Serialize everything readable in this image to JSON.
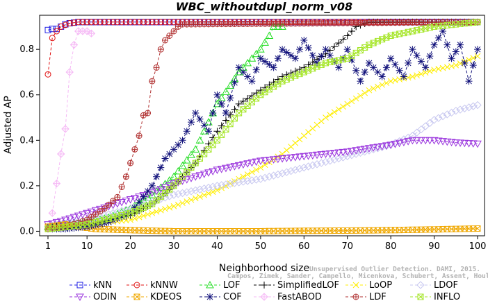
{
  "chart_data": {
    "type": "line",
    "title": "WBC_withoutdupl_norm_v08",
    "xlabel": "Neighborhood size",
    "ylabel": "Adjusted AP",
    "xlim": [
      1,
      100
    ],
    "ylim": [
      -0.02,
      0.95
    ],
    "xticks": [
      1,
      10,
      20,
      30,
      40,
      50,
      60,
      70,
      80,
      90,
      100
    ],
    "yticks": [
      0.0,
      0.2,
      0.4,
      0.6,
      0.8
    ],
    "ytick_labels": [
      "0.0",
      "0.2",
      "0.4",
      "0.6",
      "0.8"
    ],
    "legend_position": "bottom",
    "grid": false,
    "series": [
      {
        "name": "kNN",
        "color": "#1f1fe6",
        "marker": "square",
        "dashed": true,
        "points": [
          [
            1,
            0.885
          ],
          [
            2,
            0.89
          ],
          [
            3,
            0.89
          ],
          [
            4,
            0.9
          ],
          [
            5,
            0.91
          ],
          [
            6,
            0.915
          ],
          [
            8,
            0.92
          ],
          [
            10,
            0.92
          ],
          [
            20,
            0.92
          ],
          [
            40,
            0.92
          ],
          [
            60,
            0.92
          ],
          [
            80,
            0.92
          ],
          [
            100,
            0.92
          ]
        ]
      },
      {
        "name": "kNNW",
        "color": "#e01010",
        "marker": "circle",
        "dashed": true,
        "points": [
          [
            1,
            0.69
          ],
          [
            2,
            0.85
          ],
          [
            3,
            0.88
          ],
          [
            4,
            0.9
          ],
          [
            6,
            0.915
          ],
          [
            8,
            0.92
          ],
          [
            12,
            0.92
          ],
          [
            100,
            0.92
          ]
        ]
      },
      {
        "name": "LOF",
        "color": "#22dd22",
        "marker": "triangle-up",
        "dashed": true,
        "points": [
          [
            1,
            0.02
          ],
          [
            5,
            0.03
          ],
          [
            10,
            0.04
          ],
          [
            15,
            0.06
          ],
          [
            20,
            0.1
          ],
          [
            25,
            0.16
          ],
          [
            30,
            0.24
          ],
          [
            35,
            0.36
          ],
          [
            38,
            0.48
          ],
          [
            40,
            0.56
          ],
          [
            43,
            0.64
          ],
          [
            45,
            0.7
          ],
          [
            48,
            0.76
          ],
          [
            50,
            0.8
          ],
          [
            52,
            0.86
          ],
          [
            53,
            0.9
          ],
          [
            55,
            0.9
          ]
        ]
      },
      {
        "name": "SimplifiedLOF",
        "color": "#000000",
        "marker": "plus",
        "dashed": true,
        "points": [
          [
            1,
            0.02
          ],
          [
            10,
            0.03
          ],
          [
            20,
            0.07
          ],
          [
            25,
            0.12
          ],
          [
            30,
            0.2
          ],
          [
            35,
            0.3
          ],
          [
            40,
            0.44
          ],
          [
            45,
            0.56
          ],
          [
            50,
            0.62
          ],
          [
            55,
            0.68
          ],
          [
            60,
            0.72
          ],
          [
            65,
            0.78
          ],
          [
            70,
            0.86
          ],
          [
            72,
            0.9
          ],
          [
            75,
            0.92
          ],
          [
            100,
            0.92
          ]
        ]
      },
      {
        "name": "LoOP",
        "color": "#ffee00",
        "marker": "x",
        "dashed": true,
        "points": [
          [
            1,
            0.01
          ],
          [
            20,
            0.05
          ],
          [
            30,
            0.11
          ],
          [
            40,
            0.18
          ],
          [
            50,
            0.28
          ],
          [
            55,
            0.34
          ],
          [
            60,
            0.42
          ],
          [
            65,
            0.5
          ],
          [
            70,
            0.56
          ],
          [
            75,
            0.62
          ],
          [
            80,
            0.66
          ],
          [
            85,
            0.68
          ],
          [
            90,
            0.71
          ],
          [
            95,
            0.73
          ],
          [
            100,
            0.77
          ]
        ]
      },
      {
        "name": "LDOF",
        "color": "#c8c8f0",
        "marker": "diamond",
        "dashed": true,
        "points": [
          [
            1,
            0.02
          ],
          [
            10,
            0.05
          ],
          [
            20,
            0.1
          ],
          [
            30,
            0.16
          ],
          [
            40,
            0.2
          ],
          [
            50,
            0.23
          ],
          [
            60,
            0.28
          ],
          [
            70,
            0.33
          ],
          [
            80,
            0.38
          ],
          [
            85,
            0.42
          ],
          [
            90,
            0.49
          ],
          [
            95,
            0.53
          ],
          [
            100,
            0.555
          ]
        ]
      },
      {
        "name": "ODIN",
        "color": "#9933dd",
        "marker": "triangle-down",
        "dashed": true,
        "points": [
          [
            1,
            0.03
          ],
          [
            5,
            0.05
          ],
          [
            10,
            0.08
          ],
          [
            15,
            0.11
          ],
          [
            20,
            0.14
          ],
          [
            25,
            0.17
          ],
          [
            30,
            0.21
          ],
          [
            35,
            0.24
          ],
          [
            40,
            0.27
          ],
          [
            45,
            0.29
          ],
          [
            50,
            0.31
          ],
          [
            60,
            0.33
          ],
          [
            70,
            0.35
          ],
          [
            80,
            0.38
          ],
          [
            85,
            0.4
          ],
          [
            90,
            0.4
          ],
          [
            95,
            0.39
          ],
          [
            100,
            0.385
          ]
        ]
      },
      {
        "name": "KDEOS",
        "color": "#f0a800",
        "marker": "square-x",
        "dashed": true,
        "points": [
          [
            1,
            0.02
          ],
          [
            5,
            0.03
          ],
          [
            8,
            0.02
          ],
          [
            12,
            0.01
          ],
          [
            20,
            0.005
          ],
          [
            30,
            0.0
          ],
          [
            40,
            0.0
          ],
          [
            50,
            0.0
          ],
          [
            60,
            0.002
          ],
          [
            70,
            0.003
          ],
          [
            80,
            0.005
          ],
          [
            90,
            0.008
          ],
          [
            100,
            0.012
          ]
        ]
      },
      {
        "name": "COF",
        "color": "#10107a",
        "marker": "asterisk",
        "dashed": true,
        "points": [
          [
            1,
            0.01
          ],
          [
            5,
            0.01
          ],
          [
            10,
            0.02
          ],
          [
            15,
            0.04
          ],
          [
            20,
            0.08
          ],
          [
            25,
            0.2
          ],
          [
            28,
            0.32
          ],
          [
            32,
            0.4
          ],
          [
            35,
            0.52
          ],
          [
            38,
            0.44
          ],
          [
            40,
            0.6
          ],
          [
            42,
            0.52
          ],
          [
            45,
            0.72
          ],
          [
            48,
            0.66
          ],
          [
            50,
            0.76
          ],
          [
            53,
            0.72
          ],
          [
            55,
            0.8
          ],
          [
            58,
            0.76
          ],
          [
            60,
            0.84
          ],
          [
            63,
            0.74
          ],
          [
            65,
            0.8
          ],
          [
            68,
            0.72
          ],
          [
            70,
            0.8
          ],
          [
            73,
            0.66
          ],
          [
            75,
            0.74
          ],
          [
            78,
            0.68
          ],
          [
            80,
            0.76
          ],
          [
            83,
            0.68
          ],
          [
            85,
            0.8
          ],
          [
            88,
            0.72
          ],
          [
            90,
            0.82
          ],
          [
            92,
            0.88
          ],
          [
            94,
            0.76
          ],
          [
            96,
            0.82
          ],
          [
            98,
            0.66
          ],
          [
            100,
            0.8
          ]
        ]
      },
      {
        "name": "FastABOD",
        "color": "#f5b8f5",
        "marker": "diamond-plus",
        "dashed": true,
        "points": [
          [
            2,
            0.08
          ],
          [
            3,
            0.21
          ],
          [
            4,
            0.34
          ],
          [
            5,
            0.45
          ],
          [
            6,
            0.7
          ],
          [
            7,
            0.82
          ],
          [
            8,
            0.88
          ],
          [
            9,
            0.88
          ],
          [
            10,
            0.88
          ],
          [
            11,
            0.87
          ]
        ]
      },
      {
        "name": "LDF",
        "color": "#b03030",
        "marker": "circle-plus",
        "dashed": true,
        "points": [
          [
            1,
            0.01
          ],
          [
            5,
            0.02
          ],
          [
            10,
            0.05
          ],
          [
            14,
            0.1
          ],
          [
            17,
            0.15
          ],
          [
            19,
            0.24
          ],
          [
            20,
            0.3
          ],
          [
            21,
            0.36
          ],
          [
            22,
            0.42
          ],
          [
            23,
            0.51
          ],
          [
            24,
            0.52
          ],
          [
            25,
            0.66
          ],
          [
            26,
            0.72
          ],
          [
            27,
            0.8
          ],
          [
            28,
            0.84
          ],
          [
            29,
            0.86
          ],
          [
            30,
            0.88
          ],
          [
            31,
            0.9
          ],
          [
            32,
            0.91
          ],
          [
            100,
            0.92
          ]
        ]
      },
      {
        "name": "INFLO",
        "color": "#a6e62a",
        "marker": "hourglass",
        "dashed": true,
        "points": [
          [
            1,
            0.01
          ],
          [
            10,
            0.03
          ],
          [
            20,
            0.08
          ],
          [
            25,
            0.12
          ],
          [
            30,
            0.2
          ],
          [
            35,
            0.3
          ],
          [
            40,
            0.4
          ],
          [
            45,
            0.52
          ],
          [
            50,
            0.6
          ],
          [
            55,
            0.66
          ],
          [
            60,
            0.7
          ],
          [
            65,
            0.74
          ],
          [
            70,
            0.76
          ],
          [
            75,
            0.82
          ],
          [
            80,
            0.86
          ],
          [
            85,
            0.88
          ],
          [
            90,
            0.9
          ],
          [
            95,
            0.91
          ],
          [
            100,
            0.92
          ]
        ]
      }
    ]
  },
  "watermark": {
    "line1": "Unsupervised Outlier Detection. DAMI, 2015.",
    "line2": "Campos, Zimek, Sander, Campello, Micenkova, Schubert, Assent, Houle"
  }
}
